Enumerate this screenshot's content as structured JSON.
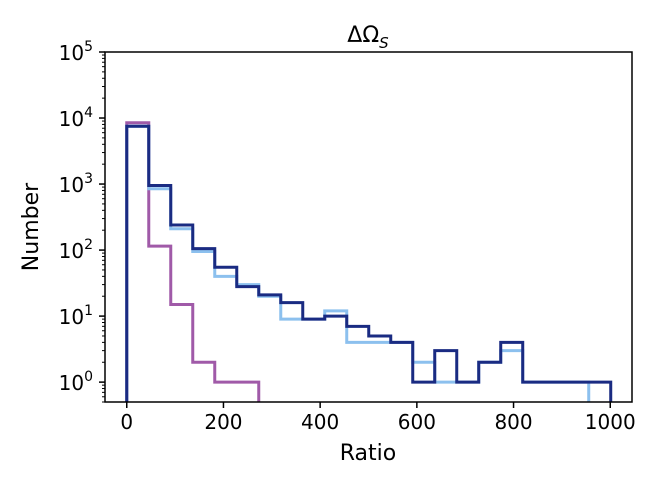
{
  "chart_data": {
    "type": "histogram",
    "title": "ΔΩ",
    "title_subscript": "S",
    "xlabel": "Ratio",
    "ylabel": "Number",
    "xlim": [
      -45,
      1045
    ],
    "ylim": [
      0.5,
      100000
    ],
    "y_scale": "log",
    "grid": false,
    "x_ticks": [
      0,
      200,
      400,
      600,
      800,
      1000
    ],
    "x_tick_labels": [
      "0",
      "200",
      "400",
      "600",
      "800",
      "1000"
    ],
    "y_ticks": [
      1,
      10,
      100,
      1000,
      10000,
      100000
    ],
    "y_tick_base": "10",
    "y_tick_exponents": [
      "0",
      "1",
      "2",
      "3",
      "4",
      "5"
    ],
    "series": [
      {
        "color": "#a05aa8",
        "bin_width": 45.5,
        "bin_start": 0,
        "values": [
          8500,
          115,
          15,
          2,
          1,
          1
        ]
      },
      {
        "color": "#8cc0ee",
        "bin_width": 45.5,
        "bin_start": 0,
        "values": [
          7500,
          850,
          210,
          95,
          40,
          30,
          20,
          9,
          9,
          12,
          4,
          4,
          4,
          2,
          1,
          1,
          2,
          3,
          1,
          1,
          1
        ]
      },
      {
        "color": "#1a2b82",
        "bin_width": 45.5,
        "bin_start": 0,
        "values": [
          7500,
          950,
          240,
          105,
          55,
          28,
          21,
          16,
          9,
          10,
          7,
          5,
          4,
          1,
          3,
          1,
          2,
          4,
          1,
          1,
          1,
          1
        ]
      }
    ]
  }
}
